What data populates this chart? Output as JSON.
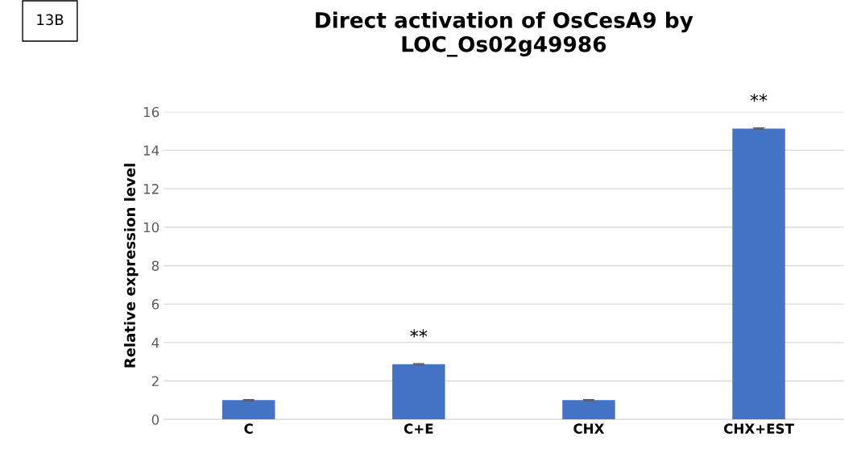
{
  "chart_data": {
    "type": "bar",
    "title": "Direct activation of OsCesA9 by\nLOC_Os02g49986",
    "ylabel": "Relative expression level",
    "categories": [
      "C",
      "C+E",
      "CHX",
      "CHX+EST"
    ],
    "values": [
      1.0,
      2.87,
      1.0,
      15.13
    ],
    "errors": [
      0.03,
      0.03,
      0.03,
      0.03
    ],
    "color": "#4472c4",
    "ylim": [
      0,
      16
    ],
    "yticks": [
      0,
      2,
      4,
      6,
      8,
      10,
      12,
      14,
      16
    ],
    "grid": "y",
    "annotations": [
      "13B",
      {
        "text": "**",
        "x": "C+E",
        "y": 2.87
      },
      {
        "text": "**",
        "x": "CHX+EST",
        "y": 15.13
      }
    ]
  }
}
